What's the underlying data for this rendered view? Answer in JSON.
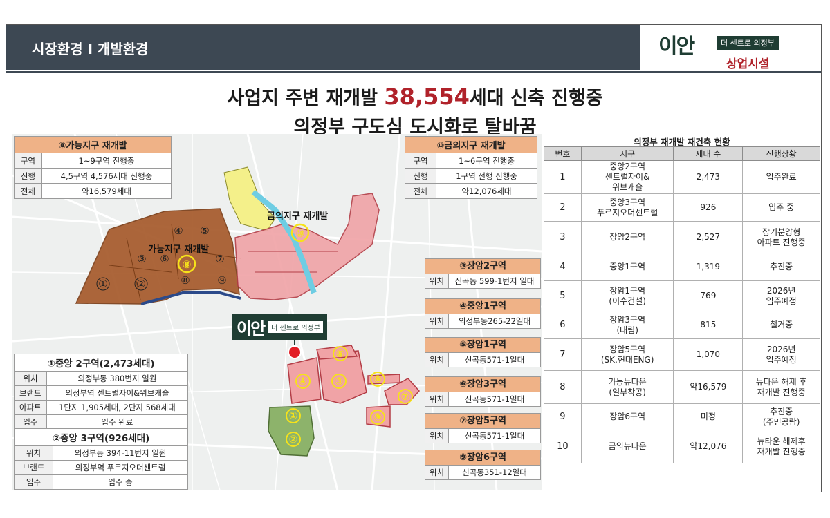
{
  "header": {
    "title": "시장환경 I 개발환경"
  },
  "brand": {
    "name": "이안",
    "tagline": "더 센트로 의정부",
    "subtitle": "상업시설"
  },
  "headline": {
    "line1_prefix": "사업지 주변 재개발 ",
    "line1_accent": "38,554",
    "line1_suffix": "세대 신축 진행중",
    "line2": "의정부 구도심 도시화로 탈바꿈"
  },
  "box_ganeung": {
    "title": "⑧가능지구 재개발",
    "rows": [
      {
        "k": "구역",
        "v": "1~9구역 진행중"
      },
      {
        "k": "진행",
        "v": "4,5구역 4,576세대 진행중"
      },
      {
        "k": "전체",
        "v": "약16,579세대"
      }
    ]
  },
  "box_geumui": {
    "title": "⑩금의지구 재개발",
    "rows": [
      {
        "k": "구역",
        "v": "1~6구역 진행중"
      },
      {
        "k": "진행",
        "v": "1구역 선행 진행중"
      },
      {
        "k": "전체",
        "v": "약12,076세대"
      }
    ]
  },
  "box_jungang2": {
    "title": "①중앙 2구역(2,473세대)",
    "rows": [
      {
        "k": "위치",
        "v": "의정부동 380번지 일원"
      },
      {
        "k": "브랜드",
        "v": "의정부역 센트럴자이&위브캐슬"
      },
      {
        "k": "아파트",
        "v": "1단지 1,905세대, 2단지 568세대"
      },
      {
        "k": "입주",
        "v": "입주 완료"
      }
    ]
  },
  "box_jungang3": {
    "title": "②중앙 3구역(926세대)",
    "rows": [
      {
        "k": "위치",
        "v": "의정부동 394-11번지 일원"
      },
      {
        "k": "브랜드",
        "v": "의정부역 푸르지오더센트럴"
      },
      {
        "k": "입주",
        "v": "입주 중"
      }
    ]
  },
  "zones": [
    {
      "title": "③장암2구역",
      "k": "위치",
      "v": "신곡동 599-1번지 일대"
    },
    {
      "title": "④중앙1구역",
      "k": "위치",
      "v": "의정부동265-22일대"
    },
    {
      "title": "⑤장암1구역",
      "k": "위치",
      "v": "신곡동571-1일대"
    },
    {
      "title": "⑥장암3구역",
      "k": "위치",
      "v": "신곡동571-1일대"
    },
    {
      "title": "⑦장암5구역",
      "k": "위치",
      "v": "신곡동571-1일대"
    },
    {
      "title": "⑨장암6구역",
      "k": "위치",
      "v": "신곡동351-12일대"
    }
  ],
  "map": {
    "label_ganeung": "가능지구 재개발",
    "label_geumui": "금의지구 재개발",
    "site_name": "이안",
    "site_tag": "더 센트로 의정부",
    "colors": {
      "brown": "#a65a2b",
      "pink": "#f0a3a6",
      "green": "#8db36b",
      "yellow": "#f4f08a",
      "river": "#6ecde3"
    }
  },
  "status_table": {
    "title": "의정부 재개발 재건축 현황",
    "headers": [
      "번호",
      "지구",
      "세대 수",
      "진행상황"
    ],
    "rows": [
      {
        "no": "1",
        "name": "중앙2구역\n센트럴자이&\n위브캐슬",
        "units": "2,473",
        "status": "입주완료"
      },
      {
        "no": "2",
        "name": "중앙3구역\n푸르지오더센트럴",
        "units": "926",
        "status": "입주 중"
      },
      {
        "no": "3",
        "name": "장암2구역",
        "units": "2,527",
        "status": "장기분양형\n아파트 진행중"
      },
      {
        "no": "4",
        "name": "중앙1구역",
        "units": "1,319",
        "status": "추진중"
      },
      {
        "no": "5",
        "name": "장암1구역\n(이수건설)",
        "units": "769",
        "status": "2026년\n입주예정"
      },
      {
        "no": "6",
        "name": "장암3구역\n(대림)",
        "units": "815",
        "status": "철거중"
      },
      {
        "no": "7",
        "name": "장암5구역\n(SK,현대ENG)",
        "units": "1,070",
        "status": "2026년\n입주예정"
      },
      {
        "no": "8",
        "name": "가능뉴타운\n(일부착공)",
        "units": "약16,579",
        "status": "뉴타운 해제 후\n재개발 진행중"
      },
      {
        "no": "9",
        "name": "장암6구역",
        "units": "미정",
        "status": "추진중\n(주민공람)"
      },
      {
        "no": "10",
        "name": "금의뉴타운",
        "units": "약12,076",
        "status": "뉴타운 해제후\n재개발 진행중"
      }
    ]
  }
}
